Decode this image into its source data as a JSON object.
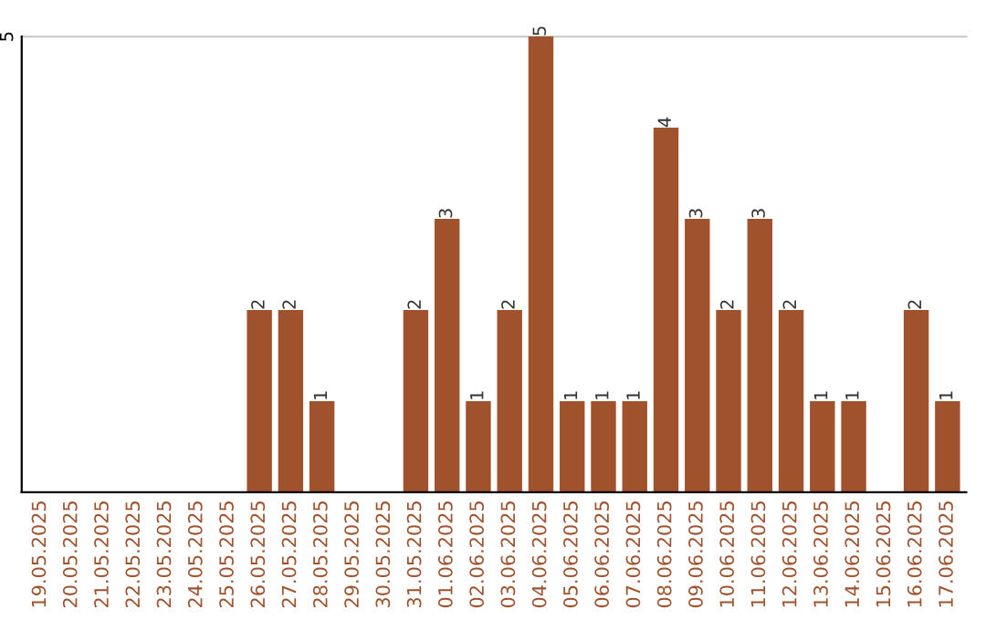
{
  "chart_data": {
    "type": "bar",
    "categories": [
      "19.05.2025",
      "20.05.2025",
      "21.05.2025",
      "22.05.2025",
      "23.05.2025",
      "24.05.2025",
      "25.05.2025",
      "26.05.2025",
      "27.05.2025",
      "28.05.2025",
      "29.05.2025",
      "30.05.2025",
      "31.05.2025",
      "01.06.2025",
      "02.06.2025",
      "03.06.2025",
      "04.06.2025",
      "05.06.2025",
      "06.06.2025",
      "07.06.2025",
      "08.06.2025",
      "09.06.2025",
      "10.06.2025",
      "11.06.2025",
      "12.06.2025",
      "13.06.2025",
      "14.06.2025",
      "15.06.2025",
      "16.06.2025",
      "17.06.2025"
    ],
    "values": [
      0,
      0,
      0,
      0,
      0,
      0,
      0,
      2,
      2,
      1,
      0,
      0,
      2,
      3,
      1,
      2,
      5,
      1,
      1,
      1,
      4,
      3,
      2,
      3,
      2,
      1,
      1,
      0,
      2,
      1
    ],
    "value_labels": [
      null,
      null,
      null,
      null,
      null,
      null,
      null,
      "2",
      "2",
      "1",
      null,
      null,
      "2",
      "3",
      "1",
      "2",
      "5",
      "1",
      "1",
      "1",
      "4",
      "3",
      "2",
      "3",
      "2",
      "1",
      "1",
      null,
      "2",
      "1"
    ],
    "color": "#a0522d",
    "ylim": [
      0,
      5
    ],
    "yticks": [
      5
    ],
    "ref_lines": [
      {
        "axis": "y",
        "value": 5,
        "color": "#cccccc"
      }
    ]
  }
}
